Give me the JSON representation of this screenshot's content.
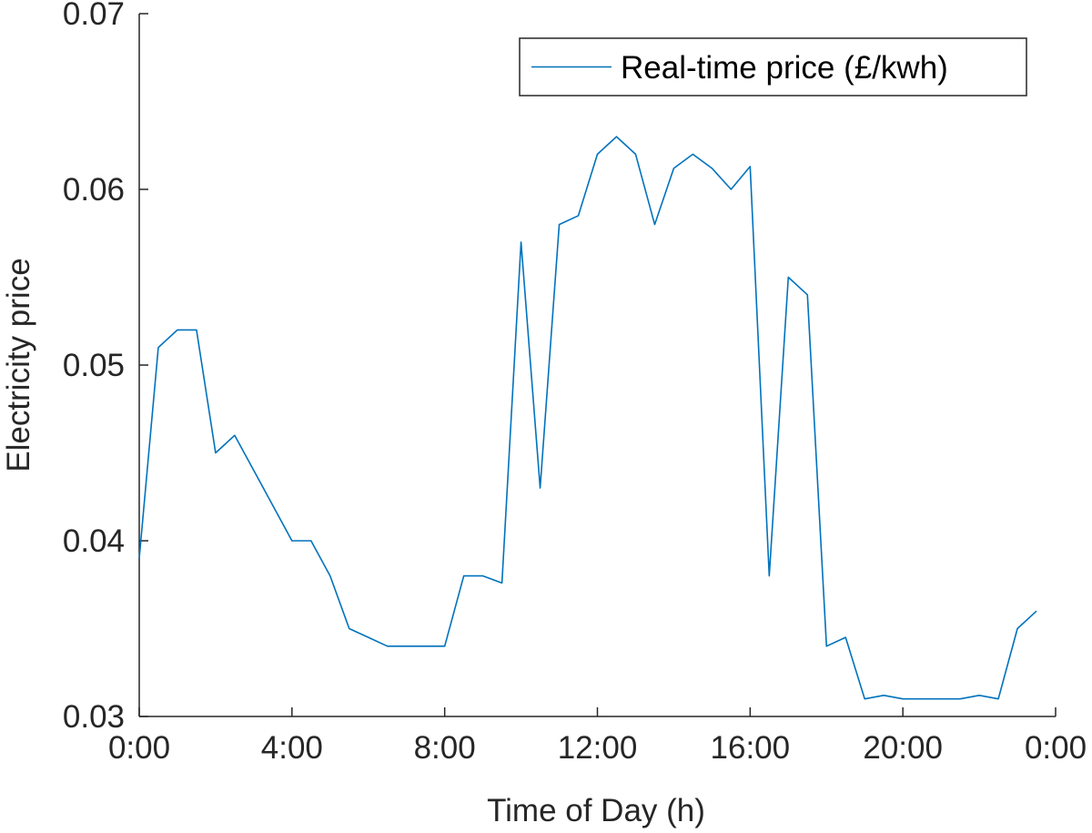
{
  "chart_data": {
    "type": "line",
    "title": "",
    "xlabel": "Time of Day (h)",
    "ylabel": "Electricity price",
    "xlim": [
      0,
      24
    ],
    "ylim": [
      0.03,
      0.07
    ],
    "grid": false,
    "legend_position": "top-right",
    "x_ticks": [
      {
        "value": 0,
        "label": "0:00"
      },
      {
        "value": 4,
        "label": "4:00"
      },
      {
        "value": 8,
        "label": "8:00"
      },
      {
        "value": 12,
        "label": "12:00"
      },
      {
        "value": 16,
        "label": "16:00"
      },
      {
        "value": 20,
        "label": "20:00"
      },
      {
        "value": 24,
        "label": "0:00"
      }
    ],
    "y_ticks": [
      {
        "value": 0.03,
        "label": "0.03"
      },
      {
        "value": 0.04,
        "label": "0.04"
      },
      {
        "value": 0.05,
        "label": "0.05"
      },
      {
        "value": 0.06,
        "label": "0.06"
      },
      {
        "value": 0.07,
        "label": "0.07"
      }
    ],
    "series": [
      {
        "name": "Real-time price (£/kwh)",
        "color": "#0072bd",
        "x": [
          0,
          0.5,
          1,
          1.5,
          2,
          2.5,
          3,
          3.5,
          4,
          4.5,
          5,
          5.5,
          6,
          6.5,
          7,
          7.5,
          8,
          8.5,
          9,
          9.5,
          10,
          10.5,
          11,
          11.5,
          12,
          12.5,
          13,
          13.5,
          14,
          14.5,
          15,
          15.5,
          16,
          16.5,
          17,
          17.5,
          18,
          18.5,
          19,
          19.5,
          20,
          20.5,
          21,
          21.5,
          22,
          22.5,
          23,
          23.5
        ],
        "y": [
          0.039,
          0.051,
          0.052,
          0.052,
          0.045,
          0.046,
          0.044,
          0.042,
          0.04,
          0.04,
          0.038,
          0.035,
          0.0345,
          0.034,
          0.034,
          0.034,
          0.034,
          0.038,
          0.038,
          0.0376,
          0.057,
          0.043,
          0.058,
          0.0585,
          0.062,
          0.063,
          0.062,
          0.058,
          0.0612,
          0.062,
          0.0612,
          0.06,
          0.0613,
          0.038,
          0.055,
          0.054,
          0.034,
          0.0345,
          0.031,
          0.0312,
          0.031,
          0.031,
          0.031,
          0.031,
          0.0312,
          0.031,
          0.035,
          0.036
        ]
      }
    ]
  }
}
